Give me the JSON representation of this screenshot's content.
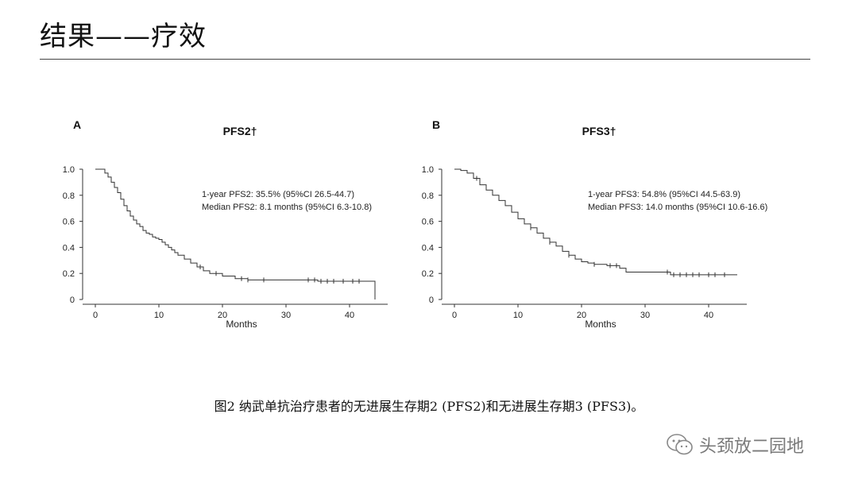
{
  "slide": {
    "title": "结果——疗效",
    "caption": "图2 纳武单抗治疗患者的无进展生存期2 (PFS2)和无进展生存期3 (PFS3)。",
    "watermark": "头颈放二园地",
    "watermark_icon": "wechat-icon"
  },
  "chart_data": [
    {
      "type": "line",
      "panel": "A",
      "title": "PFS2†",
      "xlabel": "Months",
      "ylabel": "",
      "xlim": [
        0,
        45
      ],
      "ylim": [
        0,
        1.0
      ],
      "xticks": [
        0,
        10,
        20,
        30,
        40
      ],
      "yticks": [
        0,
        0.2,
        0.4,
        0.6,
        0.8,
        1.0
      ],
      "ytick_labels": [
        "0",
        "0.2",
        "0.4",
        "0.6",
        "0.8",
        "1.0"
      ],
      "grid": false,
      "annotations": [
        "1-year PFS2: 35.5% (95%CI 26.5-44.7)",
        "Median PFS2: 8.1 months (95%CI 6.3-10.8)"
      ],
      "series": [
        {
          "x": [
            0,
            1,
            1.5,
            2,
            2.5,
            3,
            3.5,
            4,
            4.5,
            5,
            5.5,
            6,
            6.5,
            7,
            7.5,
            8,
            8.5,
            9,
            9.5,
            10,
            10.5,
            11,
            11.5,
            12,
            12.5,
            13,
            14,
            15,
            16,
            17,
            18,
            20,
            22,
            24,
            33,
            35,
            44
          ],
          "y": [
            1.0,
            1.0,
            0.97,
            0.94,
            0.9,
            0.86,
            0.82,
            0.77,
            0.72,
            0.68,
            0.64,
            0.61,
            0.58,
            0.56,
            0.53,
            0.51,
            0.5,
            0.48,
            0.47,
            0.46,
            0.44,
            0.42,
            0.4,
            0.38,
            0.36,
            0.34,
            0.31,
            0.28,
            0.25,
            0.22,
            0.2,
            0.18,
            0.16,
            0.15,
            0.15,
            0.14,
            0.14
          ]
        }
      ],
      "drop_to_zero_at": 44,
      "censor_marks_x": [
        16.5,
        19,
        23,
        24,
        26.5,
        33.5,
        34.5,
        35.5,
        36.5,
        37.5,
        39,
        40.5,
        41.5
      ]
    },
    {
      "type": "line",
      "panel": "B",
      "title": "PFS3†",
      "xlabel": "Months",
      "ylabel": "",
      "xlim": [
        0,
        45
      ],
      "ylim": [
        0,
        1.0
      ],
      "xticks": [
        0,
        10,
        20,
        30,
        40
      ],
      "yticks": [
        0,
        0.2,
        0.4,
        0.6,
        0.8,
        1.0
      ],
      "ytick_labels": [
        "0",
        "0.2",
        "0.4",
        "0.6",
        "0.8",
        "1.0"
      ],
      "grid": false,
      "annotations": [
        "1-year PFS3: 54.8% (95%CI 44.5-63.9)",
        "Median PFS3: 14.0 months (95%CI 10.6-16.6)"
      ],
      "series": [
        {
          "x": [
            0,
            1,
            2,
            3,
            4,
            5,
            6,
            7,
            8,
            9,
            10,
            11,
            12,
            13,
            14,
            15,
            16,
            17,
            18,
            19,
            20,
            21,
            22,
            24,
            26,
            27,
            33,
            34,
            44.5
          ],
          "y": [
            1.0,
            0.99,
            0.97,
            0.93,
            0.88,
            0.84,
            0.8,
            0.76,
            0.72,
            0.67,
            0.62,
            0.58,
            0.55,
            0.51,
            0.47,
            0.44,
            0.41,
            0.37,
            0.34,
            0.31,
            0.29,
            0.28,
            0.27,
            0.26,
            0.24,
            0.21,
            0.21,
            0.19,
            0.19
          ]
        }
      ],
      "censor_marks_x": [
        3.5,
        12,
        15,
        18,
        22,
        24.5,
        25.5,
        33.5,
        34.5,
        35.5,
        36.5,
        37.5,
        38.5,
        40,
        41,
        42.5
      ]
    }
  ]
}
